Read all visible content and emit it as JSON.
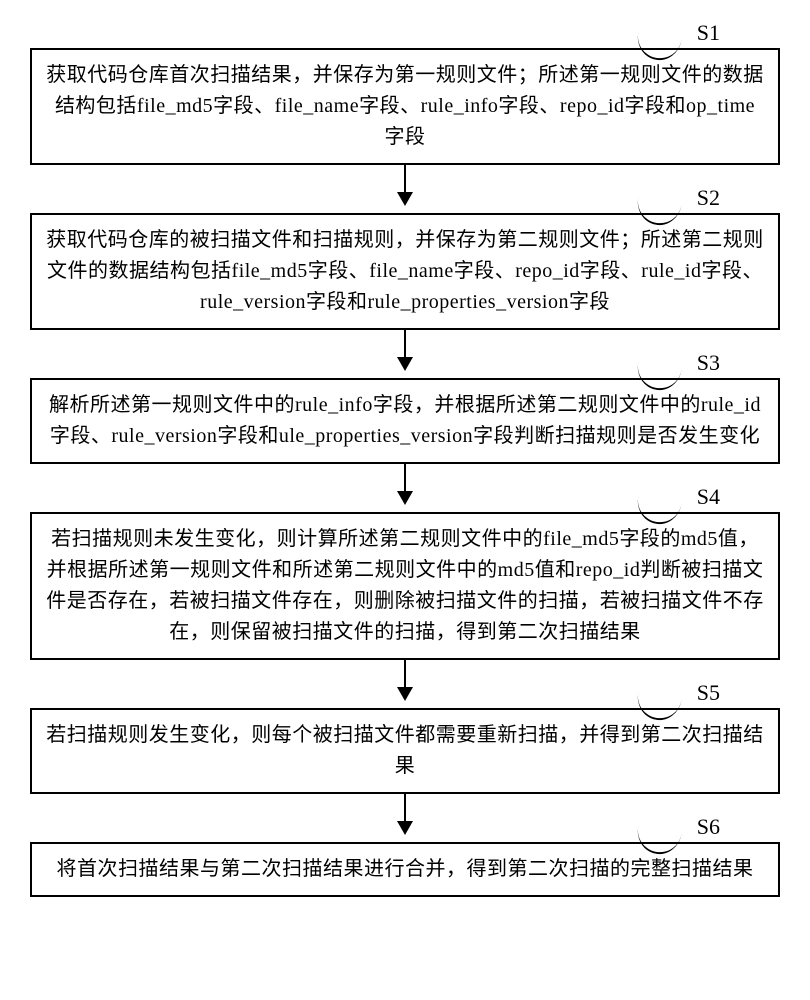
{
  "diagram": {
    "type": "flowchart",
    "background_color": "#ffffff",
    "box_border_color": "#000000",
    "box_border_width": 2,
    "arrow_color": "#000000",
    "font_family": "SimSun / 宋体",
    "body_fontsize": 20,
    "label_fontsize": 22,
    "layout": "vertical",
    "steps": [
      {
        "id": "S1",
        "label": "S1",
        "text": "获取代码仓库首次扫描结果，并保存为第一规则文件；所述第一规则文件的数据结构包括file_md5字段、file_name字段、rule_info字段、repo_id字段和op_time字段"
      },
      {
        "id": "S2",
        "label": "S2",
        "text": "获取代码仓库的被扫描文件和扫描规则，并保存为第二规则文件；所述第二规则文件的数据结构包括file_md5字段、file_name字段、repo_id字段、rule_id字段、rule_version字段和rule_properties_version字段"
      },
      {
        "id": "S3",
        "label": "S3",
        "text": "解析所述第一规则文件中的rule_info字段，并根据所述第二规则文件中的rule_id字段、rule_version字段和ule_properties_version字段判断扫描规则是否发生变化"
      },
      {
        "id": "S4",
        "label": "S4",
        "text": "若扫描规则未发生变化，则计算所述第二规则文件中的file_md5字段的md5值，并根据所述第一规则文件和所述第二规则文件中的md5值和repo_id判断被扫描文件是否存在，若被扫描文件存在，则删除被扫描文件的扫描，若被扫描文件不存在，则保留被扫描文件的扫描，得到第二次扫描结果"
      },
      {
        "id": "S5",
        "label": "S5",
        "text": "若扫描规则发生变化，则每个被扫描文件都需要重新扫描，并得到第二次扫描结果"
      },
      {
        "id": "S6",
        "label": "S6",
        "text": "将首次扫描结果与第二次扫描结果进行合并，得到第二次扫描的完整扫描结果"
      }
    ]
  }
}
